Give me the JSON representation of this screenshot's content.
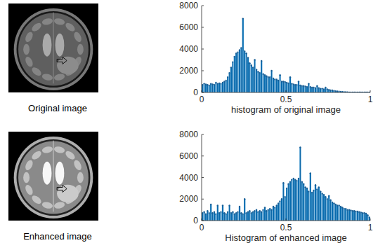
{
  "images": [
    {
      "caption": "Original image"
    },
    {
      "caption": "Enhanced image"
    }
  ],
  "chart_data": [
    {
      "type": "histogram",
      "xlabel": "histogram of original image",
      "color": "#0072bd",
      "marker": "dot",
      "xlim": [
        0,
        1
      ],
      "ylim": [
        0,
        8000
      ],
      "xticks": [
        0,
        0.5,
        1
      ],
      "yticks": [
        0,
        2000,
        4000,
        6000,
        8000
      ],
      "bins": [
        0,
        0.01,
        0.02,
        0.03,
        0.04,
        0.05,
        0.06,
        0.07,
        0.08,
        0.09,
        0.1,
        0.11,
        0.12,
        0.13,
        0.14,
        0.15,
        0.16,
        0.17,
        0.18,
        0.19,
        0.2,
        0.21,
        0.22,
        0.23,
        0.24,
        0.25,
        0.26,
        0.27,
        0.28,
        0.29,
        0.3,
        0.31,
        0.32,
        0.33,
        0.34,
        0.35,
        0.36,
        0.37,
        0.38,
        0.39,
        0.4,
        0.41,
        0.42,
        0.43,
        0.44,
        0.45,
        0.46,
        0.47,
        0.48,
        0.49,
        0.5,
        0.51,
        0.52,
        0.53,
        0.54,
        0.55,
        0.56,
        0.57,
        0.58,
        0.59,
        0.6,
        0.61,
        0.62,
        0.63,
        0.64,
        0.65,
        0.66,
        0.67,
        0.68,
        0.69,
        0.7,
        0.71,
        0.72,
        0.73,
        0.74,
        0.75,
        0.76,
        0.77,
        0.78,
        0.79,
        0.8,
        0.81,
        0.82,
        0.83,
        0.84,
        0.85,
        0.86,
        0.87,
        0.88,
        0.89,
        0.9,
        0.91,
        0.92,
        0.93,
        0.94,
        0.95,
        0.96,
        0.97,
        0.98,
        0.99,
        1
      ],
      "values": [
        700,
        800,
        750,
        700,
        650,
        800,
        750,
        700,
        900,
        800,
        850,
        800,
        900,
        1000,
        1100,
        1400,
        1800,
        2300,
        2800,
        3300,
        3600,
        3700,
        3900,
        4100,
        6800,
        3800,
        3600,
        3200,
        2700,
        2500,
        2300,
        3000,
        2100,
        1900,
        1800,
        2900,
        1700,
        1600,
        1500,
        1400,
        1400,
        2000,
        1300,
        1200,
        1200,
        1100,
        1600,
        1000,
        1000,
        950,
        900,
        850,
        1400,
        800,
        750,
        700,
        700,
        1000,
        650,
        600,
        600,
        550,
        500,
        800,
        500,
        450,
        450,
        400,
        600,
        400,
        350,
        350,
        300,
        450,
        300,
        250,
        200,
        200,
        150,
        120,
        100,
        80,
        60,
        50,
        40,
        30,
        20,
        10,
        5,
        0,
        0,
        0,
        0,
        0,
        0,
        0,
        0,
        0,
        0,
        0
      ]
    },
    {
      "type": "histogram",
      "xlabel": "Histogram of enhanced image",
      "color": "#0072bd",
      "marker": "dot",
      "xlim": [
        0,
        1
      ],
      "ylim": [
        0,
        8000
      ],
      "xticks": [
        0,
        0.5,
        1
      ],
      "yticks": [
        0,
        2000,
        4000,
        6000,
        8000
      ],
      "bins": [
        0,
        0.01,
        0.02,
        0.03,
        0.04,
        0.05,
        0.06,
        0.07,
        0.08,
        0.09,
        0.1,
        0.11,
        0.12,
        0.13,
        0.14,
        0.15,
        0.16,
        0.17,
        0.18,
        0.19,
        0.2,
        0.21,
        0.22,
        0.23,
        0.24,
        0.25,
        0.26,
        0.27,
        0.28,
        0.29,
        0.3,
        0.31,
        0.32,
        0.33,
        0.34,
        0.35,
        0.36,
        0.37,
        0.38,
        0.39,
        0.4,
        0.41,
        0.42,
        0.43,
        0.44,
        0.45,
        0.46,
        0.47,
        0.48,
        0.49,
        0.5,
        0.51,
        0.52,
        0.53,
        0.54,
        0.55,
        0.56,
        0.57,
        0.58,
        0.59,
        0.6,
        0.61,
        0.62,
        0.63,
        0.64,
        0.65,
        0.66,
        0.67,
        0.68,
        0.69,
        0.7,
        0.71,
        0.72,
        0.73,
        0.74,
        0.75,
        0.76,
        0.77,
        0.78,
        0.79,
        0.8,
        0.81,
        0.82,
        0.83,
        0.84,
        0.85,
        0.86,
        0.87,
        0.88,
        0.89,
        0.9,
        0.91,
        0.92,
        0.93,
        0.94,
        0.95,
        0.96,
        0.97,
        0.98,
        0.99,
        1
      ],
      "values": [
        700,
        800,
        600,
        900,
        700,
        1500,
        700,
        800,
        600,
        1400,
        700,
        800,
        1400,
        700,
        600,
        800,
        1400,
        700,
        800,
        600,
        700,
        800,
        1300,
        700,
        600,
        2000,
        700,
        800,
        900,
        700,
        800,
        900,
        1000,
        800,
        900,
        800,
        1000,
        1200,
        900,
        1000,
        1100,
        1000,
        1300,
        1200,
        1400,
        1600,
        1800,
        2000,
        3500,
        2200,
        3000,
        3400,
        3600,
        3800,
        3900,
        3800,
        3700,
        3900,
        6800,
        3600,
        3400,
        3100,
        3000,
        2700,
        4400,
        2600,
        2800,
        3300,
        2900,
        3100,
        2700,
        2500,
        2400,
        2200,
        2000,
        2300,
        1900,
        1700,
        1600,
        1500,
        1400,
        1400,
        1300,
        1200,
        1100,
        1100,
        1000,
        1000,
        950,
        900,
        900,
        850,
        850,
        800,
        750,
        700,
        700,
        650,
        500,
        300
      ]
    }
  ]
}
